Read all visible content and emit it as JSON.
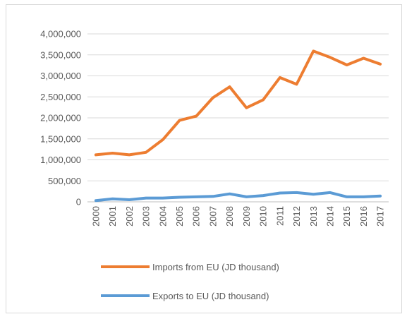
{
  "chart_data": {
    "type": "line",
    "title": "",
    "xlabel": "",
    "ylabel": "",
    "categories": [
      "2000",
      "2001",
      "2002",
      "2003",
      "2004",
      "2005",
      "2006",
      "2007",
      "2008",
      "2009",
      "2010",
      "2011",
      "2012",
      "2013",
      "2014",
      "2015",
      "2016",
      "2017"
    ],
    "ylim": [
      0,
      4000000
    ],
    "yticks": [
      "0",
      "500,000",
      "1,000,000",
      "1,500,000",
      "2,000,000",
      "2,500,000",
      "3,000,000",
      "3,500,000",
      "4,000,000"
    ],
    "grid": true,
    "legend_position": "bottom",
    "series": [
      {
        "name": "Imports from  EU (JD thousand)",
        "color": "#ED7D31",
        "values": [
          1120000,
          1160000,
          1120000,
          1180000,
          1480000,
          1940000,
          2040000,
          2480000,
          2740000,
          2240000,
          2430000,
          2960000,
          2800000,
          3590000,
          3440000,
          3260000,
          3420000,
          3280000
        ]
      },
      {
        "name": "Exports to EU (JD thousand)",
        "color": "#5B9BD5",
        "values": [
          30000,
          70000,
          50000,
          90000,
          90000,
          110000,
          120000,
          130000,
          190000,
          120000,
          150000,
          210000,
          220000,
          180000,
          220000,
          120000,
          120000,
          140000
        ]
      }
    ]
  }
}
